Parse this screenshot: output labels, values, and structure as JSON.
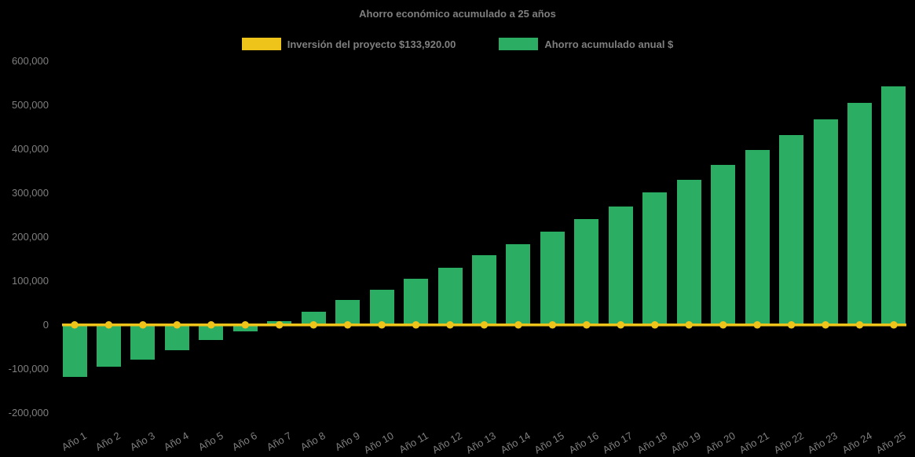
{
  "title": "Ahorro económico acumulado a 25 años",
  "legend": {
    "investment_label": "Inversión del proyecto $133,920.00",
    "savings_label": "Ahorro acumulado anual $"
  },
  "colors": {
    "background": "#000000",
    "bar_green": "#2bad64",
    "line_yellow": "#eec31a",
    "text_gray": "#7f7f7f"
  },
  "chart_data": {
    "type": "bar",
    "title": "Ahorro económico acumulado a 25 años",
    "categories": [
      "Año 1",
      "Año 2",
      "Año 3",
      "Año 4",
      "Año 5",
      "Año 6",
      "Año 7",
      "Año 8",
      "Año 9",
      "Año 10",
      "Año 11",
      "Año 12",
      "Año 13",
      "Año 14",
      "Año 15",
      "Año 16",
      "Año 17",
      "Año 18",
      "Año 19",
      "Año 20",
      "Año 21",
      "Año 22",
      "Año 23",
      "Año 24",
      "Año 25"
    ],
    "series": [
      {
        "name": "Ahorro acumulado anual $",
        "type": "bar",
        "color": "#2bad64",
        "values": [
          -118000,
          -96000,
          -79000,
          -57000,
          -35000,
          -15000,
          9000,
          30000,
          56000,
          80000,
          105000,
          130000,
          158000,
          183000,
          213000,
          241000,
          270000,
          302000,
          330000,
          365000,
          399000,
          432000,
          468000,
          505000,
          544000
        ]
      },
      {
        "name": "Inversión del proyecto $133,920.00",
        "type": "line",
        "color": "#eec31a",
        "values": [
          0,
          0,
          0,
          0,
          0,
          0,
          0,
          0,
          0,
          0,
          0,
          0,
          0,
          0,
          0,
          0,
          0,
          0,
          0,
          0,
          0,
          0,
          0,
          0,
          0
        ]
      }
    ],
    "xlabel": "",
    "ylabel": "",
    "ylim": [
      -200000,
      600000
    ],
    "ytick_step": 100000,
    "grid": false,
    "legend_position": "top-center"
  }
}
